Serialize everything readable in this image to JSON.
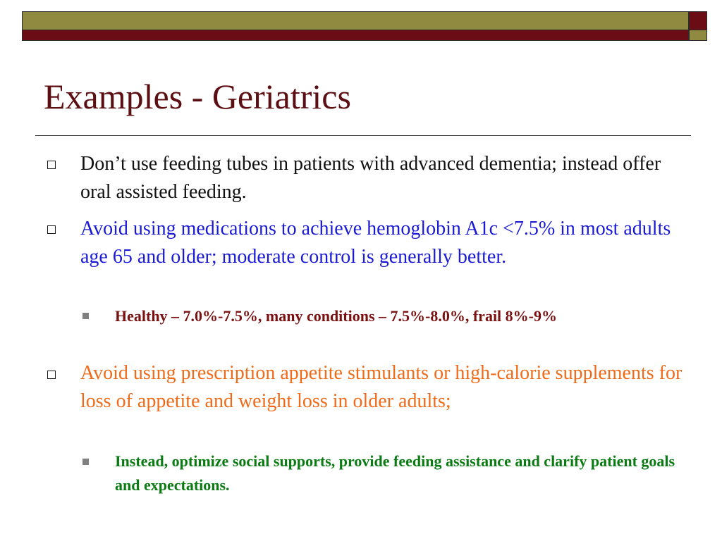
{
  "slide": {
    "title": "Examples - Geriatrics",
    "colors": {
      "olive": "#8f8a40",
      "maroon": "#6b0d14",
      "title": "#5c0f12"
    },
    "bullets": [
      {
        "text": "Don’t use feeding tubes in patients with advanced dementia; instead offer oral assisted feeding.",
        "color": "#111111"
      },
      {
        "text": "Avoid using medications to achieve hemoglobin A1c <7.5% in most adults age 65 and older; moderate control is generally better.",
        "color": "#1a1ad6",
        "sub": "Healthy – 7.0%-7.5%, many conditions – 7.5%-8.0%, frail 8%-9%",
        "sub_color": "#7a1010"
      },
      {
        "text": "Avoid using prescription appetite stimulants or high-calorie supplements for loss of appetite and weight loss in older adults;",
        "color": "#ef6b1a",
        "sub": "Instead, optimize social supports, provide feeding assistance and clarify patient goals and expectations.",
        "sub_color": "#0a7a12"
      }
    ],
    "bullet_icon": "hollow-square-icon",
    "sub_bullet_icon": "filled-square-icon"
  }
}
